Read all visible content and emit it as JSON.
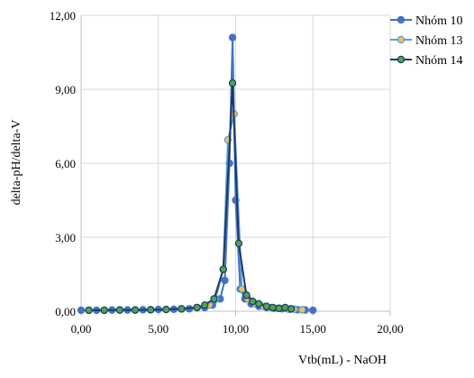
{
  "chart_data": {
    "type": "scatter",
    "xlabel": "Vtb(mL) - NaOH",
    "ylabel": "delta-pH/delta-V",
    "xlim": [
      0,
      20
    ],
    "ylim": [
      0,
      12
    ],
    "x_ticks": [
      "0,00",
      "5,00",
      "10,00",
      "15,00",
      "20,00"
    ],
    "y_ticks": [
      "0,00",
      "3,00",
      "6,00",
      "9,00",
      "12,00"
    ],
    "grid": true,
    "legend_position": "top-right",
    "series": [
      {
        "name": "Nhóm 10",
        "color": "#4472C4",
        "marker_fill": "#4472C4",
        "x": [
          0.0,
          1.0,
          2.0,
          3.0,
          4.0,
          5.0,
          6.0,
          7.0,
          8.0,
          8.5,
          9.0,
          9.3,
          9.6,
          9.8,
          10.0,
          10.3,
          10.6,
          11.0,
          11.5,
          12.0,
          12.5,
          13.0,
          13.5,
          14.0,
          14.5,
          15.0
        ],
        "y": [
          0.04,
          0.04,
          0.05,
          0.05,
          0.06,
          0.07,
          0.08,
          0.1,
          0.15,
          0.25,
          0.5,
          1.25,
          6.0,
          11.1,
          4.5,
          0.9,
          0.5,
          0.3,
          0.2,
          0.15,
          0.12,
          0.1,
          0.08,
          0.06,
          0.05,
          0.04
        ]
      },
      {
        "name": "Nhóm 13",
        "color": "#5B9BD5",
        "marker_fill": "#F2C14E",
        "x": [
          0.5,
          1.5,
          2.5,
          3.5,
          4.5,
          5.5,
          6.5,
          7.5,
          8.3,
          8.7,
          9.2,
          9.5,
          9.9,
          10.4,
          10.8,
          11.3,
          11.8,
          12.3,
          12.8,
          13.3,
          13.8,
          14.3
        ],
        "y": [
          0.04,
          0.04,
          0.05,
          0.05,
          0.06,
          0.07,
          0.09,
          0.15,
          0.25,
          0.5,
          1.7,
          6.95,
          8.0,
          0.9,
          0.5,
          0.3,
          0.2,
          0.15,
          0.12,
          0.1,
          0.08,
          0.06
        ]
      },
      {
        "name": "Nhóm 14",
        "color": "#1F3864",
        "marker_fill": "#4CA64C",
        "x": [
          0.5,
          1.5,
          2.5,
          3.5,
          4.5,
          5.5,
          6.5,
          7.5,
          8.0,
          8.6,
          9.2,
          9.8,
          10.2,
          10.7,
          11.1,
          11.5,
          12.0,
          12.4,
          12.8,
          13.2,
          13.6
        ],
        "y": [
          0.04,
          0.04,
          0.05,
          0.05,
          0.06,
          0.07,
          0.1,
          0.15,
          0.25,
          0.5,
          1.7,
          9.25,
          2.75,
          0.65,
          0.4,
          0.3,
          0.2,
          0.15,
          0.12,
          0.15,
          0.1
        ]
      }
    ]
  }
}
